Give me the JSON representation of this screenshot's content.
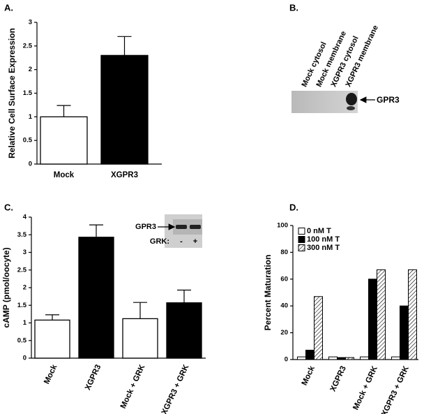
{
  "chart_data": [
    {
      "type": "bar",
      "panel_label": "A.",
      "ylabel": "Relative Cell Surface Expression",
      "categories": [
        "Mock",
        "XGPR3"
      ],
      "values": [
        1.0,
        2.3
      ],
      "errors": [
        0.24,
        0.4
      ],
      "colors": [
        "#ffffff",
        "#000000"
      ],
      "ylim": [
        0,
        3
      ],
      "yticks": [
        0,
        0.5,
        1,
        1.5,
        2,
        2.5,
        3
      ]
    },
    {
      "type": "blot",
      "panel_label": "B.",
      "lanes": [
        "Mock cytosol",
        "Mock membrane",
        "XGPR3 cytosol",
        "XGPR3 membrane"
      ],
      "band_label": "GPR3"
    },
    {
      "type": "bar",
      "panel_label": "C.",
      "ylabel": "cAMP (pmol/oocyte)",
      "categories": [
        "Mock",
        "XGPR3",
        "Mock + GRK",
        "XGPR3 + GRK"
      ],
      "values": [
        1.08,
        3.43,
        1.12,
        1.57
      ],
      "errors": [
        0.15,
        0.35,
        0.46,
        0.36
      ],
      "colors": [
        "#ffffff",
        "#000000",
        "#ffffff",
        "#000000"
      ],
      "ylim": [
        0,
        4
      ],
      "yticks": [
        0,
        0.5,
        1,
        1.5,
        2,
        2.5,
        3,
        3.5,
        4
      ],
      "inset": {
        "band_label": "GPR3",
        "row_label": "GRK:",
        "lanes": [
          "-",
          "+"
        ]
      }
    },
    {
      "type": "grouped_bar",
      "panel_label": "D.",
      "ylabel": "Percent Maturation",
      "categories": [
        "Mock",
        "XGPR3",
        "Mock + GRK",
        "XGPR3 + GRK"
      ],
      "series": [
        {
          "name": "0 nM T",
          "color": "#ffffff",
          "values": [
            2,
            2,
            2,
            2
          ]
        },
        {
          "name": "100 nM T",
          "color": "#000000",
          "values": [
            7,
            1.5,
            60,
            40
          ]
        },
        {
          "name": "300 nM T",
          "color": "#ffffff",
          "pattern": "hatch",
          "values": [
            47,
            1.5,
            67,
            67
          ]
        }
      ],
      "ylim": [
        0,
        100
      ],
      "yticks": [
        0,
        20,
        40,
        60,
        80,
        100
      ],
      "legend": "upper left"
    }
  ]
}
